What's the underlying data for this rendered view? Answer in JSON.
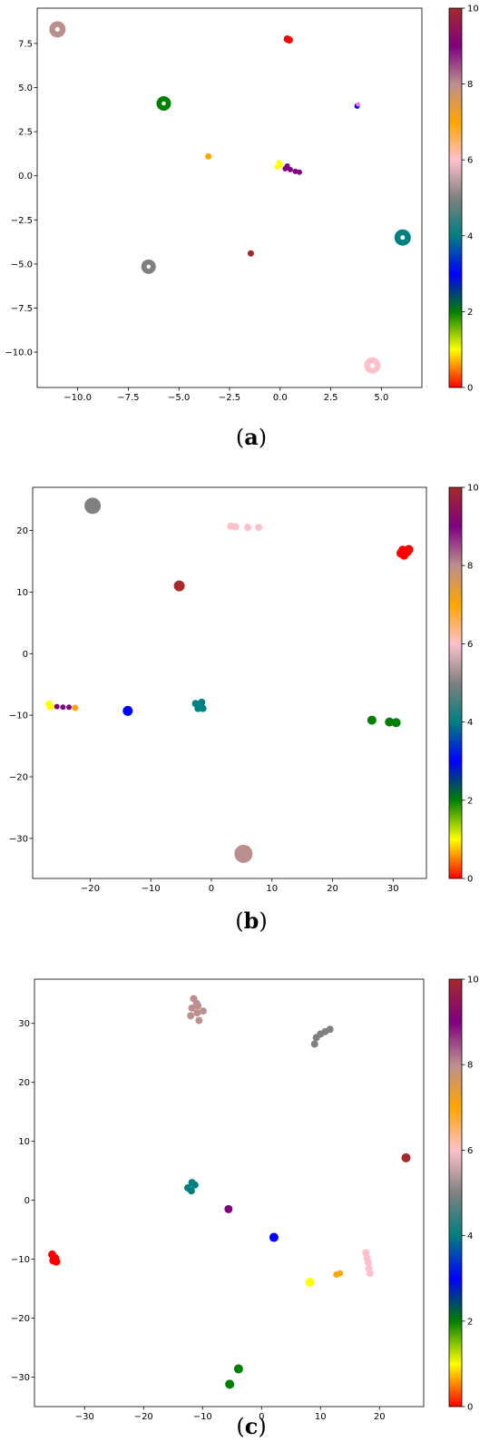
{
  "colorbar": {
    "ticks": [
      0,
      2,
      4,
      6,
      8,
      10
    ],
    "stops": [
      "#ff0000",
      "#ffff00",
      "#008000",
      "#0000ff",
      "#008080",
      "#808080",
      "#ffc0cb",
      "#ffa500",
      "#bc8f8f",
      "#800080",
      "#a52a2a"
    ]
  },
  "chart_data": [
    {
      "type": "scatter",
      "panel_label": {
        "open": "(",
        "letter": "a",
        "close": ")"
      },
      "xlim": [
        -12.0,
        7.0
      ],
      "ylim": [
        -12.0,
        9.5
      ],
      "x_ticks": [
        -10.0,
        -7.5,
        -5.0,
        -2.5,
        0.0,
        2.5,
        5.0
      ],
      "x_tick_labels": [
        "−10.0",
        "−7.5",
        "−5.0",
        "−2.5",
        "0.0",
        "2.5",
        "5.0"
      ],
      "y_ticks": [
        7.5,
        5.0,
        2.5,
        0.0,
        -2.5,
        -5.0,
        -7.5,
        -10.0
      ],
      "y_tick_labels": [
        "7.5",
        "5.0",
        "2.5",
        "0.0",
        "−2.5",
        "−5.0",
        "−7.5",
        "−10.0"
      ],
      "colorbar_ticks": [
        "0",
        "2",
        "4",
        "6",
        "8",
        "10"
      ],
      "clusters": [
        {
          "label": "0",
          "color": "#ff0000",
          "points": [
            [
              0.35,
              7.75
            ],
            [
              0.45,
              7.7
            ]
          ],
          "size": 4,
          "ring": false
        },
        {
          "label": "1",
          "color": "#ffff00",
          "points": [
            [
              -0.15,
              0.5
            ],
            [
              -0.05,
              0.75
            ],
            [
              0.0,
              0.6
            ]
          ],
          "size": 3,
          "ring": false
        },
        {
          "label": "2",
          "color": "#008000",
          "points": [
            [
              -5.75,
              4.1
            ]
          ],
          "size": 8,
          "ring": true
        },
        {
          "label": "3",
          "color": "#0000ff",
          "points": [
            [
              3.8,
              3.95
            ]
          ],
          "size": 3,
          "ring": false
        },
        {
          "label": "4",
          "color": "#008080",
          "points": [
            [
              6.05,
              -3.5
            ]
          ],
          "size": 9,
          "ring": true
        },
        {
          "label": "5",
          "color": "#808080",
          "points": [
            [
              -6.5,
              -5.15
            ]
          ],
          "size": 8,
          "ring": true
        },
        {
          "label": "6",
          "color": "#ffc0cb",
          "points": [
            [
              4.55,
              -10.75
            ]
          ],
          "size": 9,
          "ring": true
        },
        {
          "label": "7",
          "color": "#ffa500",
          "points": [
            [
              -3.55,
              1.1
            ]
          ],
          "size": 3.5,
          "ring": false
        },
        {
          "label": "8",
          "color": "#bc8f8f",
          "points": [
            [
              -11.0,
              8.3
            ]
          ],
          "size": 9,
          "ring": true
        },
        {
          "label": "9",
          "color": "#800080",
          "points": [
            [
              0.25,
              0.4
            ],
            [
              0.5,
              0.35
            ],
            [
              0.75,
              0.25
            ],
            [
              0.95,
              0.2
            ],
            [
              0.35,
              0.55
            ]
          ],
          "size": 3,
          "ring": false
        },
        {
          "label": "10",
          "color": "#a52a2a",
          "points": [
            [
              -1.45,
              -4.4
            ]
          ],
          "size": 3.5,
          "ring": false
        },
        {
          "label": "3b",
          "color": "#ee82ee",
          "points": [
            [
              3.85,
              4.05
            ]
          ],
          "size": 2.5,
          "ring": false
        }
      ]
    },
    {
      "type": "scatter",
      "panel_label": {
        "open": "(",
        "letter": "b",
        "close": ")"
      },
      "xlim": [
        -29.5,
        35.5
      ],
      "ylim": [
        -36.5,
        27.0
      ],
      "x_ticks": [
        -20,
        -10,
        0,
        10,
        20,
        30
      ],
      "x_tick_labels": [
        "−20",
        "−10",
        "0",
        "10",
        "20",
        "30"
      ],
      "y_ticks": [
        20,
        10,
        0,
        -10,
        -20,
        -30
      ],
      "y_tick_labels": [
        "20",
        "10",
        "0",
        "−10",
        "−20",
        "−30"
      ],
      "colorbar_ticks": [
        "0",
        "2",
        "4",
        "6",
        "8",
        "10"
      ],
      "clusters": [
        {
          "label": "0",
          "color": "#ff0000",
          "points": [
            [
              31.3,
              16.3
            ],
            [
              31.8,
              16.0
            ],
            [
              32.3,
              16.5
            ],
            [
              31.6,
              16.8
            ],
            [
              32.6,
              16.9
            ]
          ],
          "size": 5,
          "ring": false
        },
        {
          "label": "1",
          "color": "#ffff00",
          "points": [
            [
              -26.8,
              -8.2
            ],
            [
              -26.6,
              -8.6
            ]
          ],
          "size": 4,
          "ring": false
        },
        {
          "label": "2",
          "color": "#008000",
          "points": [
            [
              26.5,
              -10.8
            ],
            [
              29.4,
              -11.1
            ],
            [
              30.5,
              -11.2
            ]
          ],
          "size": 5,
          "ring": false
        },
        {
          "label": "3",
          "color": "#0000ff",
          "points": [
            [
              -13.8,
              -9.3
            ]
          ],
          "size": 5.5,
          "ring": false
        },
        {
          "label": "4",
          "color": "#008080",
          "points": [
            [
              -2.6,
              -8.1
            ],
            [
              -1.6,
              -7.9
            ],
            [
              -2.2,
              -8.9
            ],
            [
              -1.4,
              -8.9
            ]
          ],
          "size": 4,
          "ring": false
        },
        {
          "label": "5",
          "color": "#808080",
          "points": [
            [
              -19.6,
              24.0
            ]
          ],
          "size": 9,
          "ring": false
        },
        {
          "label": "6",
          "color": "#ffc0cb",
          "points": [
            [
              4.0,
              20.6
            ],
            [
              6.0,
              20.5
            ],
            [
              7.8,
              20.5
            ],
            [
              3.2,
              20.7
            ]
          ],
          "size": 4,
          "ring": false
        },
        {
          "label": "7",
          "color": "#ffa500",
          "points": [
            [
              -22.5,
              -8.8
            ]
          ],
          "size": 3.5,
          "ring": false
        },
        {
          "label": "8",
          "color": "#bc8f8f",
          "points": [
            [
              5.3,
              -32.5
            ]
          ],
          "size": 10,
          "ring": false
        },
        {
          "label": "9",
          "color": "#800080",
          "points": [
            [
              -25.5,
              -8.6
            ],
            [
              -24.5,
              -8.7
            ],
            [
              -23.5,
              -8.7
            ]
          ],
          "size": 3,
          "ring": false
        },
        {
          "label": "10",
          "color": "#a52a2a",
          "points": [
            [
              -5.3,
              11.0
            ]
          ],
          "size": 6,
          "ring": false
        }
      ]
    },
    {
      "type": "scatter",
      "panel_label": {
        "open": "(",
        "letter": "c",
        "close": ")"
      },
      "xlim": [
        -38.5,
        27.5
      ],
      "ylim": [
        -35.0,
        37.5
      ],
      "x_ticks": [
        -30,
        -20,
        -10,
        0,
        10,
        20
      ],
      "x_tick_labels": [
        "−30",
        "−20",
        "−10",
        "0",
        "10",
        "20"
      ],
      "y_ticks": [
        30,
        20,
        10,
        0,
        -10,
        -20,
        -30
      ],
      "y_tick_labels": [
        "30",
        "20",
        "10",
        "0",
        "−10",
        "−20",
        "−30"
      ],
      "colorbar_ticks": [
        "0",
        "2",
        "4",
        "6",
        "8",
        "10"
      ],
      "clusters": [
        {
          "label": "0",
          "color": "#ff0000",
          "points": [
            [
              -35.5,
              -9.2
            ],
            [
              -35.0,
              -9.8
            ],
            [
              -34.8,
              -10.4
            ],
            [
              -35.3,
              -10.2
            ]
          ],
          "size": 4.5,
          "ring": false
        },
        {
          "label": "1",
          "color": "#ffff00",
          "points": [
            [
              8.2,
              -13.9
            ]
          ],
          "size": 5,
          "ring": false
        },
        {
          "label": "2",
          "color": "#008000",
          "points": [
            [
              -3.9,
              -28.6
            ],
            [
              -5.4,
              -31.2
            ]
          ],
          "size": 5,
          "ring": false
        },
        {
          "label": "3",
          "color": "#0000ff",
          "points": [
            [
              2.1,
              -6.3
            ]
          ],
          "size": 5,
          "ring": false
        },
        {
          "label": "4",
          "color": "#008080",
          "points": [
            [
              -12.5,
              2.1
            ],
            [
              -11.8,
              3.0
            ],
            [
              -11.9,
              1.6
            ],
            [
              -11.3,
              2.6
            ]
          ],
          "size": 4,
          "ring": false
        },
        {
          "label": "5",
          "color": "#808080",
          "points": [
            [
              9.0,
              26.5
            ],
            [
              9.3,
              27.6
            ],
            [
              10.0,
              28.2
            ],
            [
              10.8,
              28.6
            ],
            [
              11.6,
              29.0
            ]
          ],
          "size": 4,
          "ring": false
        },
        {
          "label": "6",
          "color": "#ffc0cb",
          "points": [
            [
              17.7,
              -8.9
            ],
            [
              17.9,
              -9.8
            ],
            [
              18.1,
              -10.6
            ],
            [
              18.2,
              -11.6
            ],
            [
              18.4,
              -12.4
            ]
          ],
          "size": 4,
          "ring": false
        },
        {
          "label": "7",
          "color": "#ffa500",
          "points": [
            [
              12.7,
              -12.6
            ],
            [
              13.3,
              -12.4
            ]
          ],
          "size": 3.5,
          "ring": false
        },
        {
          "label": "8",
          "color": "#bc8f8f",
          "points": [
            [
              -11.5,
              34.2
            ],
            [
              -11.0,
              33.4
            ],
            [
              -11.8,
              32.6
            ],
            [
              -10.9,
              31.8
            ],
            [
              -12.0,
              31.3
            ],
            [
              -10.6,
              30.5
            ],
            [
              -9.9,
              32.1
            ],
            [
              -10.8,
              33.0
            ]
          ],
          "size": 4,
          "ring": false
        },
        {
          "label": "9",
          "color": "#800080",
          "points": [
            [
              -5.6,
              -1.5
            ]
          ],
          "size": 4.5,
          "ring": false
        },
        {
          "label": "10",
          "color": "#a52a2a",
          "points": [
            [
              24.5,
              7.2
            ]
          ],
          "size": 5,
          "ring": false
        }
      ]
    }
  ]
}
